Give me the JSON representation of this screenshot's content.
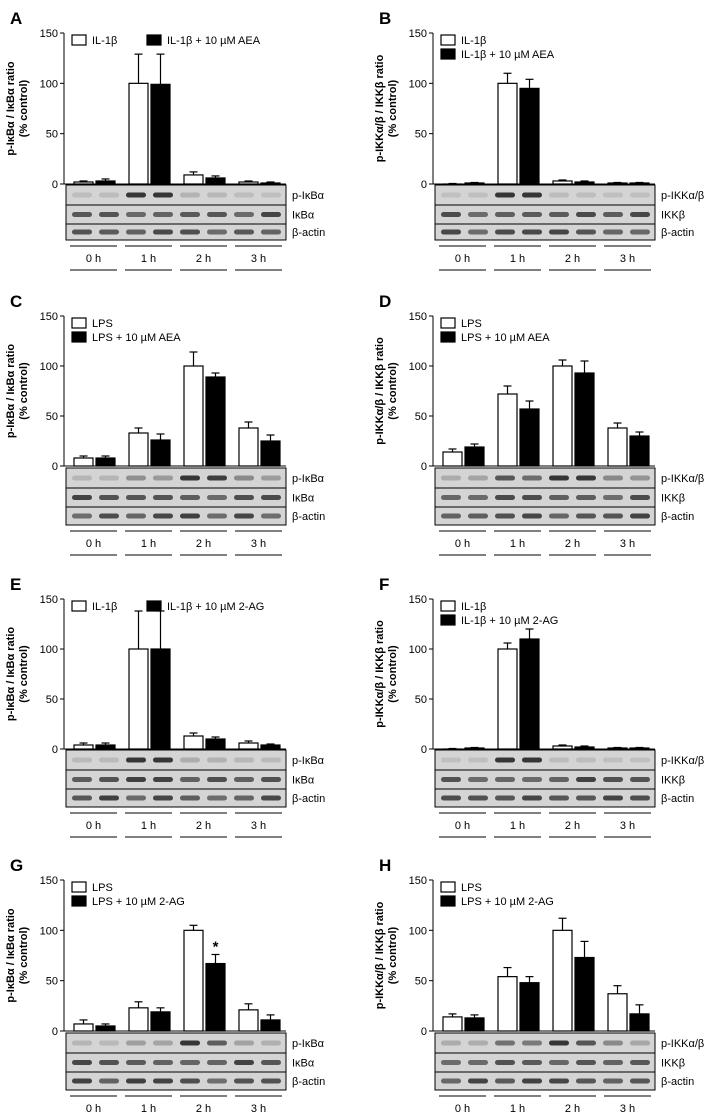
{
  "chart_data": [
    {
      "panel": "A",
      "type": "bar",
      "ylabel": [
        "p-IκBα / IκBα ratio",
        "(% control)"
      ],
      "yticks": [
        0,
        50,
        100,
        150
      ],
      "ylim": [
        0,
        150
      ],
      "grid": false,
      "legend_position": "top",
      "legend_layout": "row",
      "categories": [
        "0 h",
        "1 h",
        "2 h",
        "3 h"
      ],
      "series": [
        {
          "name": "IL-1β",
          "values": [
            2,
            100,
            9,
            2
          ],
          "errors": [
            1,
            29,
            3,
            1
          ]
        },
        {
          "name": "IL-1β + 10 µM AEA",
          "values": [
            3,
            99,
            6,
            1
          ],
          "errors": [
            2,
            30,
            2,
            1
          ]
        }
      ],
      "annotations": [],
      "blot_labels": [
        "p-IκBα",
        "IκBα",
        "β-actin"
      ]
    },
    {
      "panel": "B",
      "type": "bar",
      "ylabel": [
        "p-IKKα/β / IKKβ ratio",
        "(% control)"
      ],
      "yticks": [
        0,
        50,
        100,
        150
      ],
      "ylim": [
        0,
        150
      ],
      "grid": false,
      "legend_position": "top",
      "legend_layout": "column",
      "categories": [
        "0 h",
        "1 h",
        "2 h",
        "3 h"
      ],
      "series": [
        {
          "name": "IL-1β",
          "values": [
            0,
            100,
            3,
            1
          ],
          "errors": [
            0.5,
            10,
            1,
            0.5
          ]
        },
        {
          "name": "IL-1β + 10 µM AEA",
          "values": [
            1,
            95,
            2,
            1
          ],
          "errors": [
            0.5,
            9,
            1,
            0.5
          ]
        }
      ],
      "annotations": [],
      "blot_labels": [
        "p-IKKα/β",
        "IKKβ",
        "β-actin"
      ]
    },
    {
      "panel": "C",
      "type": "bar",
      "ylabel": [
        "p-IκBα / IκBα ratio",
        "(% control)"
      ],
      "yticks": [
        0,
        50,
        100,
        150
      ],
      "ylim": [
        0,
        150
      ],
      "grid": false,
      "legend_position": "top",
      "legend_layout": "column",
      "categories": [
        "0 h",
        "1 h",
        "2 h",
        "3 h"
      ],
      "series": [
        {
          "name": "LPS",
          "values": [
            8,
            33,
            100,
            38
          ],
          "errors": [
            2,
            5,
            14,
            6
          ]
        },
        {
          "name": "LPS + 10 µM AEA",
          "values": [
            8,
            26,
            89,
            25
          ],
          "errors": [
            2,
            6,
            4,
            6
          ]
        }
      ],
      "annotations": [],
      "blot_labels": [
        "p-IκBα",
        "IκBα",
        "β-actin"
      ]
    },
    {
      "panel": "D",
      "type": "bar",
      "ylabel": [
        "p-IKKα/β / IKKβ ratio",
        "(% control)"
      ],
      "yticks": [
        0,
        50,
        100,
        150
      ],
      "ylim": [
        0,
        150
      ],
      "grid": false,
      "legend_position": "top",
      "legend_layout": "column",
      "categories": [
        "0 h",
        "1 h",
        "2 h",
        "3 h"
      ],
      "series": [
        {
          "name": "LPS",
          "values": [
            14,
            72,
            100,
            38
          ],
          "errors": [
            3,
            8,
            6,
            5
          ]
        },
        {
          "name": "LPS + 10 µM AEA",
          "values": [
            19,
            57,
            93,
            30
          ],
          "errors": [
            3,
            8,
            12,
            4
          ]
        }
      ],
      "annotations": [],
      "blot_labels": [
        "p-IKKα/β",
        "IKKβ",
        "β-actin"
      ]
    },
    {
      "panel": "E",
      "type": "bar",
      "ylabel": [
        "p-IκBα / IκBα ratio",
        "(% control)"
      ],
      "yticks": [
        0,
        50,
        100,
        150
      ],
      "ylim": [
        0,
        150
      ],
      "grid": false,
      "legend_position": "top",
      "legend_layout": "row",
      "categories": [
        "0 h",
        "1 h",
        "2 h",
        "3 h"
      ],
      "series": [
        {
          "name": "IL-1β",
          "values": [
            4,
            100,
            13,
            6
          ],
          "errors": [
            2,
            38,
            3,
            2
          ]
        },
        {
          "name": "IL-1β + 10 µM 2-AG",
          "values": [
            4,
            100,
            10,
            4
          ],
          "errors": [
            2,
            38,
            2,
            1
          ]
        }
      ],
      "annotations": [],
      "blot_labels": [
        "p-IκBα",
        "IκBα",
        "β-actin"
      ]
    },
    {
      "panel": "F",
      "type": "bar",
      "ylabel": [
        "p-IKKα/β / IKKβ ratio",
        "(% control)"
      ],
      "yticks": [
        0,
        50,
        100,
        150
      ],
      "ylim": [
        0,
        150
      ],
      "grid": false,
      "legend_position": "top",
      "legend_layout": "column",
      "categories": [
        "0 h",
        "1 h",
        "2 h",
        "3 h"
      ],
      "series": [
        {
          "name": "IL-1β",
          "values": [
            0,
            100,
            3,
            1
          ],
          "errors": [
            0.5,
            6,
            1,
            0.5
          ]
        },
        {
          "name": "IL-1β + 10 µM 2-AG",
          "values": [
            1,
            110,
            2,
            1
          ],
          "errors": [
            0.5,
            10,
            1,
            0.5
          ]
        }
      ],
      "annotations": [],
      "blot_labels": [
        "p-IKKα/β",
        "IKKβ",
        "β-actin"
      ]
    },
    {
      "panel": "G",
      "type": "bar",
      "ylabel": [
        "p-IκBα / IκBα ratio",
        "(% control)"
      ],
      "yticks": [
        0,
        50,
        100,
        150
      ],
      "ylim": [
        0,
        150
      ],
      "grid": false,
      "legend_position": "top",
      "legend_layout": "column",
      "categories": [
        "0 h",
        "1 h",
        "2 h",
        "3 h"
      ],
      "series": [
        {
          "name": "LPS",
          "values": [
            7,
            23,
            100,
            21
          ],
          "errors": [
            4,
            6,
            5,
            6
          ]
        },
        {
          "name": "LPS + 10 µM 2-AG",
          "values": [
            5,
            19,
            67,
            11
          ],
          "errors": [
            2,
            4,
            9,
            5
          ]
        }
      ],
      "annotations": [
        {
          "category": "2 h",
          "series": 1,
          "text": "*"
        }
      ],
      "blot_labels": [
        "p-IκBα",
        "IκBα",
        "β-actin"
      ]
    },
    {
      "panel": "H",
      "type": "bar",
      "ylabel": [
        "p-IKKα/β / IKKβ ratio",
        "(% control)"
      ],
      "yticks": [
        0,
        50,
        100,
        150
      ],
      "ylim": [
        0,
        150
      ],
      "grid": false,
      "legend_position": "top",
      "legend_layout": "column",
      "categories": [
        "0 h",
        "1 h",
        "2 h",
        "3 h"
      ],
      "series": [
        {
          "name": "LPS",
          "values": [
            14,
            54,
            100,
            37
          ],
          "errors": [
            3,
            9,
            12,
            8
          ]
        },
        {
          "name": "LPS + 10 µM 2-AG",
          "values": [
            13,
            48,
            73,
            17
          ],
          "errors": [
            3,
            6,
            16,
            9
          ]
        }
      ],
      "annotations": [],
      "blot_labels": [
        "p-IKKα/β",
        "IKKβ",
        "β-actin"
      ]
    }
  ]
}
